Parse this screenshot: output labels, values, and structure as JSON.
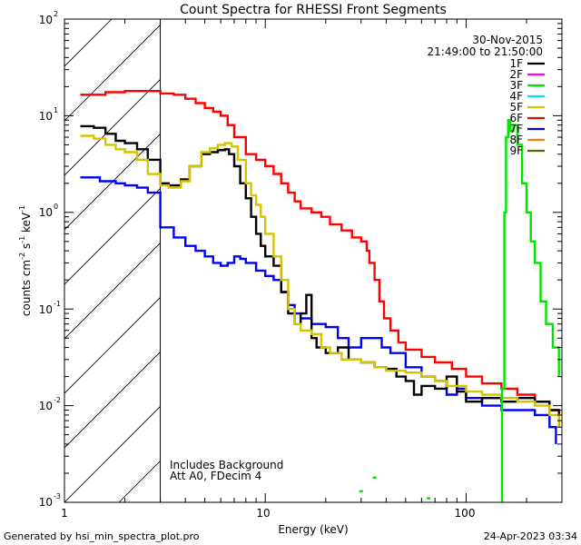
{
  "chart_data": {
    "type": "line",
    "title": "Count Spectra for RHESSI Front Segments",
    "xlabel": "Energy (keV)",
    "ylabel_main": "counts cm",
    "ylabel_s": " s",
    "ylabel_kev": " keV",
    "ylabel_exp": "-1",
    "ylabel_exp2": "-2",
    "xscale": "log",
    "yscale": "log",
    "xlim": [
      1,
      300
    ],
    "ylim": [
      0.001,
      100
    ],
    "x_ticks": [
      {
        "value": 1,
        "label": "1"
      },
      {
        "value": 10,
        "label": "10"
      },
      {
        "value": 100,
        "label": "100"
      }
    ],
    "y_ticks": [
      {
        "value": 0.001,
        "base": "10",
        "exp": "-3"
      },
      {
        "value": 0.01,
        "base": "10",
        "exp": "-2"
      },
      {
        "value": 0.1,
        "base": "10",
        "exp": "-1"
      },
      {
        "value": 1,
        "base": "10",
        "exp": "0"
      },
      {
        "value": 10,
        "base": "10",
        "exp": "1"
      },
      {
        "value": 100,
        "base": "10",
        "exp": "2"
      }
    ],
    "hatched_region": {
      "x_from": 1,
      "x_to": 3
    },
    "annotations": {
      "date": "30-Nov-2015",
      "time_range": "21:49:00 to 21:50:00",
      "background_note": "Includes Background",
      "attenuator_note": "Att A0, FDecim 4"
    },
    "legend": [
      {
        "name": "1F",
        "color": "#000000"
      },
      {
        "name": "2F",
        "color": "#ff00ff"
      },
      {
        "name": "3F",
        "color": "#00e400"
      },
      {
        "name": "4F",
        "color": "#00e5ee"
      },
      {
        "name": "5F",
        "color": "#d4c400"
      },
      {
        "name": "6F",
        "color": "#ff0000"
      },
      {
        "name": "7F",
        "color": "#0000ff"
      },
      {
        "name": "8F",
        "color": "#ff8000"
      },
      {
        "name": "9F",
        "color": "#6b5e00"
      }
    ],
    "series": [
      {
        "name": "6F",
        "color": "#ff0000",
        "points": [
          [
            1.2,
            16.5
          ],
          [
            1.6,
            17.5
          ],
          [
            2.0,
            18
          ],
          [
            2.5,
            18
          ],
          [
            3.0,
            17
          ],
          [
            3.5,
            16.5
          ],
          [
            4.0,
            15
          ],
          [
            4.5,
            13.5
          ],
          [
            5.0,
            12
          ],
          [
            5.5,
            11
          ],
          [
            6.0,
            10
          ],
          [
            6.5,
            8
          ],
          [
            7.0,
            6
          ],
          [
            8.0,
            4
          ],
          [
            9.0,
            3.5
          ],
          [
            10.0,
            3
          ],
          [
            11.0,
            2.5
          ],
          [
            12.0,
            2
          ],
          [
            13.0,
            1.6
          ],
          [
            14.0,
            1.3
          ],
          [
            15.0,
            1.1
          ],
          [
            17.0,
            1.0
          ],
          [
            19.0,
            0.9
          ],
          [
            21.0,
            0.75
          ],
          [
            24.0,
            0.65
          ],
          [
            27.0,
            0.55
          ],
          [
            30.0,
            0.5
          ],
          [
            32.0,
            0.4
          ],
          [
            33.0,
            0.3
          ],
          [
            35.0,
            0.2
          ],
          [
            37.0,
            0.12
          ],
          [
            39.0,
            0.08
          ],
          [
            42.0,
            0.06
          ],
          [
            46.0,
            0.045
          ],
          [
            50.0,
            0.038
          ],
          [
            60.0,
            0.032
          ],
          [
            70.0,
            0.028
          ],
          [
            85.0,
            0.024
          ],
          [
            100.0,
            0.02
          ],
          [
            120.0,
            0.017
          ],
          [
            150.0,
            0.015
          ],
          [
            180.0,
            0.013
          ],
          [
            220.0,
            0.011
          ],
          [
            260.0,
            0.009
          ],
          [
            290.0,
            0.007
          ]
        ]
      },
      {
        "name": "7F",
        "color": "#0000ff",
        "points": [
          [
            1.2,
            2.3
          ],
          [
            1.5,
            2.1
          ],
          [
            1.8,
            2.0
          ],
          [
            2.0,
            1.9
          ],
          [
            2.3,
            1.8
          ],
          [
            2.6,
            1.6
          ],
          [
            3.0,
            0.7
          ],
          [
            3.5,
            0.55
          ],
          [
            4.0,
            0.45
          ],
          [
            4.5,
            0.4
          ],
          [
            5.0,
            0.35
          ],
          [
            5.5,
            0.3
          ],
          [
            6.0,
            0.28
          ],
          [
            6.5,
            0.3
          ],
          [
            7.0,
            0.35
          ],
          [
            7.5,
            0.33
          ],
          [
            8.0,
            0.3
          ],
          [
            9.0,
            0.25
          ],
          [
            10.0,
            0.22
          ],
          [
            11.0,
            0.2
          ],
          [
            12.0,
            0.15
          ],
          [
            13.0,
            0.11
          ],
          [
            14.0,
            0.09
          ],
          [
            15.0,
            0.08
          ],
          [
            17.0,
            0.07
          ],
          [
            20.0,
            0.065
          ],
          [
            23.0,
            0.05
          ],
          [
            26.0,
            0.04
          ],
          [
            30.0,
            0.05
          ],
          [
            34.0,
            0.05
          ],
          [
            38.0,
            0.04
          ],
          [
            42.0,
            0.035
          ],
          [
            50.0,
            0.025
          ],
          [
            60.0,
            0.02
          ],
          [
            70.0,
            0.018
          ],
          [
            80.0,
            0.013
          ],
          [
            90.0,
            0.015
          ],
          [
            100.0,
            0.012
          ],
          [
            120.0,
            0.01
          ],
          [
            150.0,
            0.009
          ],
          [
            180.0,
            0.009
          ],
          [
            220.0,
            0.008
          ],
          [
            260.0,
            0.006
          ],
          [
            280.0,
            0.004
          ]
        ]
      },
      {
        "name": "1F",
        "color": "#000000",
        "points": [
          [
            1.2,
            7.8
          ],
          [
            1.4,
            7.5
          ],
          [
            1.6,
            6.5
          ],
          [
            1.8,
            5.5
          ],
          [
            2.0,
            5.2
          ],
          [
            2.3,
            4.5
          ],
          [
            2.6,
            3.5
          ],
          [
            3.0,
            2.0
          ],
          [
            3.3,
            1.9
          ],
          [
            3.8,
            2.2
          ],
          [
            4.2,
            3.0
          ],
          [
            4.8,
            4.0
          ],
          [
            5.3,
            4.2
          ],
          [
            5.8,
            4.4
          ],
          [
            6.3,
            4.5
          ],
          [
            6.6,
            4.0
          ],
          [
            7.0,
            3.0
          ],
          [
            7.5,
            2.0
          ],
          [
            8.0,
            1.4
          ],
          [
            8.5,
            0.9
          ],
          [
            9.0,
            0.6
          ],
          [
            9.5,
            0.45
          ],
          [
            10.0,
            0.35
          ],
          [
            11.0,
            0.28
          ],
          [
            12.0,
            0.15
          ],
          [
            13.0,
            0.09
          ],
          [
            14.0,
            0.07
          ],
          [
            15.0,
            0.09
          ],
          [
            16.0,
            0.14
          ],
          [
            17.0,
            0.05
          ],
          [
            18.0,
            0.04
          ],
          [
            20.0,
            0.035
          ],
          [
            23.0,
            0.04
          ],
          [
            26.0,
            0.03
          ],
          [
            30.0,
            0.028
          ],
          [
            35.0,
            0.025
          ],
          [
            40.0,
            0.024
          ],
          [
            45.0,
            0.02
          ],
          [
            50.0,
            0.018
          ],
          [
            55.0,
            0.013
          ],
          [
            60.0,
            0.016
          ],
          [
            70.0,
            0.015
          ],
          [
            80.0,
            0.02
          ],
          [
            90.0,
            0.014
          ],
          [
            100.0,
            0.011
          ],
          [
            120.0,
            0.012
          ],
          [
            150.0,
            0.011
          ],
          [
            180.0,
            0.012
          ],
          [
            220.0,
            0.011
          ],
          [
            260.0,
            0.009
          ],
          [
            290.0,
            0.006
          ]
        ]
      },
      {
        "name": "5F",
        "color": "#d4c400",
        "points": [
          [
            1.2,
            6.2
          ],
          [
            1.4,
            5.8
          ],
          [
            1.6,
            5.0
          ],
          [
            1.8,
            4.5
          ],
          [
            2.0,
            4.2
          ],
          [
            2.3,
            3.5
          ],
          [
            2.6,
            2.5
          ],
          [
            3.0,
            1.9
          ],
          [
            3.3,
            1.8
          ],
          [
            3.8,
            2.1
          ],
          [
            4.2,
            3.0
          ],
          [
            4.8,
            4.2
          ],
          [
            5.3,
            4.6
          ],
          [
            5.8,
            5.0
          ],
          [
            6.3,
            5.2
          ],
          [
            6.8,
            4.8
          ],
          [
            7.3,
            3.5
          ],
          [
            8.0,
            2.0
          ],
          [
            8.5,
            1.5
          ],
          [
            9.0,
            1.2
          ],
          [
            9.5,
            0.9
          ],
          [
            10.0,
            0.6
          ],
          [
            11.0,
            0.35
          ],
          [
            12.0,
            0.2
          ],
          [
            13.0,
            0.1
          ],
          [
            14.0,
            0.07
          ],
          [
            15.0,
            0.06
          ],
          [
            17.0,
            0.055
          ],
          [
            19.0,
            0.04
          ],
          [
            21.0,
            0.035
          ],
          [
            24.0,
            0.03
          ],
          [
            27.0,
            0.03
          ],
          [
            30.0,
            0.028
          ],
          [
            35.0,
            0.025
          ],
          [
            40.0,
            0.023
          ],
          [
            50.0,
            0.022
          ],
          [
            60.0,
            0.02
          ],
          [
            70.0,
            0.018
          ],
          [
            80.0,
            0.016
          ],
          [
            100.0,
            0.014
          ],
          [
            120.0,
            0.013
          ],
          [
            150.0,
            0.012
          ],
          [
            180.0,
            0.011
          ],
          [
            220.0,
            0.01
          ],
          [
            260.0,
            0.008
          ],
          [
            290.0,
            0.006
          ]
        ]
      },
      {
        "name": "3F",
        "color": "#00e400",
        "points": [
          [
            150.0,
            0.001
          ],
          [
            151.0,
            0.015
          ],
          [
            155.0,
            1.0
          ],
          [
            158.0,
            6.0
          ],
          [
            162.0,
            9.0
          ],
          [
            166.0,
            7.0
          ],
          [
            172.0,
            8.0
          ],
          [
            180.0,
            5.0
          ],
          [
            190.0,
            2.0
          ],
          [
            200.0,
            1.0
          ],
          [
            210.0,
            0.5
          ],
          [
            220.0,
            0.3
          ],
          [
            235.0,
            0.12
          ],
          [
            250.0,
            0.07
          ],
          [
            270.0,
            0.04
          ],
          [
            290.0,
            0.02
          ]
        ]
      }
    ],
    "isolated_points_3F": [
      [
        30.0,
        0.0013
      ],
      [
        35.0,
        0.0018
      ],
      [
        65.0,
        0.0011
      ]
    ]
  },
  "footer": {
    "generated_by": "Generated by hsi_min_spectra_plot.pro",
    "timestamp": "24-Apr-2023 03:34"
  }
}
